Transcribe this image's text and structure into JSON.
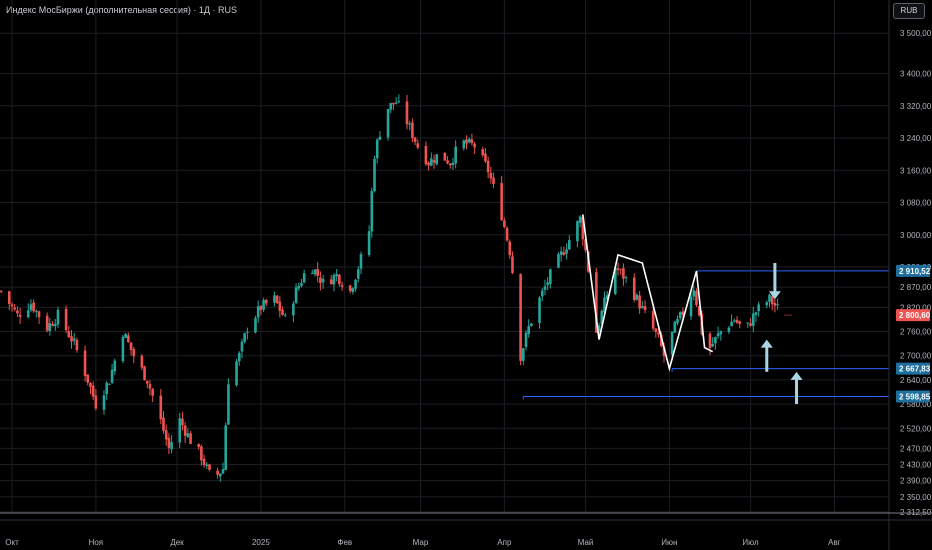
{
  "header": {
    "title": "Индекс МосБиржи (дополнительная сессия) · 1Д · RUS",
    "currency": "RUB"
  },
  "colors": {
    "background": "#000000",
    "up": "#26a69a",
    "down": "#ef5350",
    "grid": "#1c1e24",
    "level_line": "#2962ff",
    "arrow": "#a9d6e5",
    "pattern": "#ffffff",
    "price_tag_current": "#ef5350",
    "price_tag_level": "#1e6f9e"
  },
  "chart_data": {
    "type": "candlestick",
    "title": "Индекс МосБиржи (дополнительная сессия) · 1Д · RUS",
    "ylim": [
      2280,
      3560
    ],
    "y_ticks": [
      "3 500,00",
      "3 400,00",
      "3 320,00",
      "3 240,00",
      "3 160,00",
      "3 080,00",
      "3 000,00",
      "2 920,00",
      "2 870,00",
      "2 820,00",
      "2 760,00",
      "2 700,00",
      "2 640,00",
      "2 580,00",
      "2 520,00",
      "2 470,00",
      "2 430,00",
      "2 390,00",
      "2 350,00",
      "2 312,50"
    ],
    "y_tick_values": [
      3500,
      3400,
      3320,
      3240,
      3160,
      3080,
      3000,
      2920,
      2870,
      2820,
      2760,
      2700,
      2640,
      2580,
      2520,
      2470,
      2430,
      2390,
      2350,
      2312.5
    ],
    "x_labels": [
      "Окт",
      "Ноя",
      "Дек",
      "2025",
      "Фев",
      "Мар",
      "Апр",
      "Май",
      "Июн",
      "Июл",
      "Авг"
    ],
    "x_label_dates": [
      "2024-10-01",
      "2024-11-01",
      "2024-12-01",
      "2025-01-01",
      "2025-02-01",
      "2025-03-01",
      "2025-04-01",
      "2025-05-01",
      "2025-06-01",
      "2025-07-01",
      "2025-08-01"
    ],
    "x_range": [
      "2024-10-01",
      "2025-08-16"
    ],
    "price_path": [
      [
        "2024-09-27",
        2860
      ],
      [
        "2024-10-03",
        2800
      ],
      [
        "2024-10-08",
        2830
      ],
      [
        "2024-10-14",
        2770
      ],
      [
        "2024-10-18",
        2800
      ],
      [
        "2024-10-24",
        2730
      ],
      [
        "2024-10-29",
        2640
      ],
      [
        "2024-11-01",
        2580
      ],
      [
        "2024-11-06",
        2640
      ],
      [
        "2024-11-11",
        2760
      ],
      [
        "2024-11-15",
        2700
      ],
      [
        "2024-11-20",
        2640
      ],
      [
        "2024-11-24",
        2560
      ],
      [
        "2024-11-28",
        2470
      ],
      [
        "2024-12-02",
        2540
      ],
      [
        "2024-12-06",
        2490
      ],
      [
        "2024-12-10",
        2450
      ],
      [
        "2024-12-14",
        2390
      ],
      [
        "2024-12-18",
        2420
      ],
      [
        "2024-12-20",
        2640
      ],
      [
        "2024-12-24",
        2700
      ],
      [
        "2024-12-27",
        2770
      ],
      [
        "2025-01-01",
        2820
      ],
      [
        "2025-01-06",
        2840
      ],
      [
        "2025-01-10",
        2790
      ],
      [
        "2025-01-14",
        2860
      ],
      [
        "2025-01-19",
        2930
      ],
      [
        "2025-01-24",
        2880
      ],
      [
        "2025-01-29",
        2900
      ],
      [
        "2025-02-03",
        2860
      ],
      [
        "2025-02-07",
        2940
      ],
      [
        "2025-02-10",
        3010
      ],
      [
        "2025-02-12",
        3200
      ],
      [
        "2025-02-16",
        3310
      ],
      [
        "2025-02-20",
        3330
      ],
      [
        "2025-02-24",
        3280
      ],
      [
        "2025-02-28",
        3220
      ],
      [
        "2025-03-04",
        3180
      ],
      [
        "2025-03-08",
        3200
      ],
      [
        "2025-03-12",
        3180
      ],
      [
        "2025-03-16",
        3230
      ],
      [
        "2025-03-21",
        3220
      ],
      [
        "2025-03-26",
        3160
      ],
      [
        "2025-03-31",
        3050
      ],
      [
        "2025-04-03",
        2960
      ],
      [
        "2025-04-05",
        2860
      ],
      [
        "2025-04-07",
        2700
      ],
      [
        "2025-04-10",
        2770
      ],
      [
        "2025-04-14",
        2840
      ],
      [
        "2025-04-18",
        2900
      ],
      [
        "2025-04-22",
        2950
      ],
      [
        "2025-04-26",
        3000
      ],
      [
        "2025-04-29",
        3040
      ],
      [
        "2025-05-01",
        2960
      ],
      [
        "2025-05-03",
        2870
      ],
      [
        "2025-05-05",
        2760
      ],
      [
        "2025-05-08",
        2830
      ],
      [
        "2025-05-12",
        2920
      ],
      [
        "2025-05-16",
        2890
      ],
      [
        "2025-05-20",
        2840
      ],
      [
        "2025-05-24",
        2790
      ],
      [
        "2025-05-28",
        2740
      ],
      [
        "2025-05-30",
        2700
      ],
      [
        "2025-06-03",
        2770
      ],
      [
        "2025-06-07",
        2820
      ],
      [
        "2025-06-10",
        2870
      ],
      [
        "2025-06-13",
        2760
      ],
      [
        "2025-06-16",
        2720
      ],
      [
        "2025-06-20",
        2760
      ],
      [
        "2025-06-25",
        2790
      ],
      [
        "2025-06-29",
        2760
      ],
      [
        "2025-07-03",
        2810
      ],
      [
        "2025-07-08",
        2840
      ],
      [
        "2025-07-12",
        2810
      ]
    ],
    "last_price": 2800.6,
    "last_price_label": "2 800,60",
    "last_price_date": "2025-07-15",
    "levels": [
      {
        "label": "2 910,52",
        "value": 2910.52,
        "start": "2025-06-11"
      },
      {
        "label": "2 667,83",
        "value": 2667.83,
        "start": "2025-06-02"
      },
      {
        "label": "2 598,85",
        "value": 2598.85,
        "start": "2025-04-08"
      }
    ],
    "pattern_path": [
      [
        "2025-04-30",
        3050
      ],
      [
        "2025-05-06",
        2740
      ],
      [
        "2025-05-13",
        2950
      ],
      [
        "2025-05-22",
        2930
      ],
      [
        "2025-06-01",
        2668
      ],
      [
        "2025-06-11",
        2910
      ],
      [
        "2025-06-14",
        2720
      ],
      [
        "2025-06-17",
        2710
      ]
    ],
    "arrows": [
      {
        "date": "2025-07-10",
        "from": 2930,
        "to": 2840
      },
      {
        "date": "2025-07-07",
        "from": 2660,
        "to": 2740
      },
      {
        "date": "2025-07-18",
        "from": 2580,
        "to": 2660
      }
    ]
  }
}
